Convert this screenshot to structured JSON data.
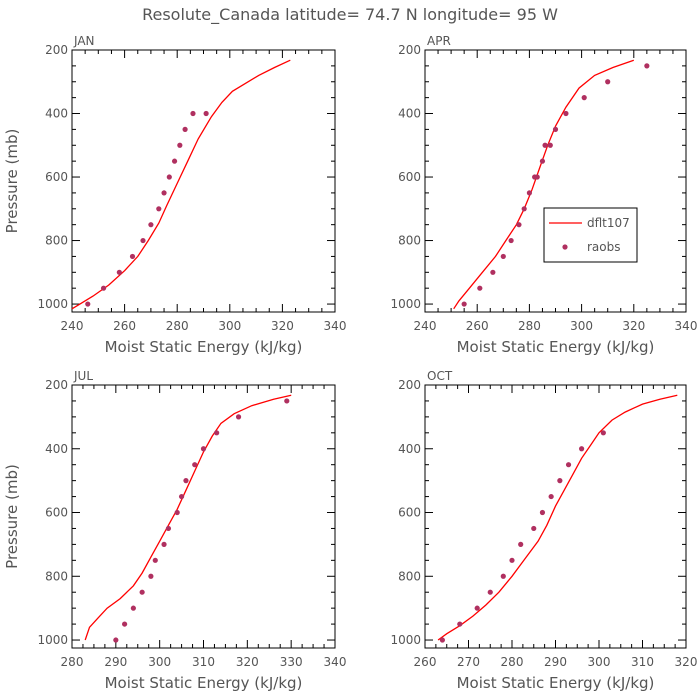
{
  "figure": {
    "title": "Resolute_Canada  latitude= 74.7 N longitude= 95 W"
  },
  "colors": {
    "model": "#ff0000",
    "obs": "#b03060",
    "axis": "#000000",
    "text": "#555555"
  },
  "chart_data": [
    {
      "type": "line",
      "panel_label": "JAN",
      "xlabel": "Moist Static Energy (kJ/kg)",
      "ylabel": "Pressure (mb)",
      "xlim": [
        240,
        340
      ],
      "ylim": [
        1025,
        200
      ],
      "xticks": [
        240,
        260,
        280,
        300,
        320,
        340
      ],
      "yticks": [
        200,
        400,
        600,
        800,
        1000
      ],
      "series": [
        {
          "name": "dflt107",
          "style": "line",
          "x": [
            240,
            243,
            248,
            254,
            260,
            265,
            269,
            273,
            276,
            280,
            284,
            288,
            293,
            297,
            301,
            306,
            311,
            317,
            323
          ],
          "y": [
            1015,
            1000,
            975,
            940,
            895,
            850,
            800,
            745,
            690,
            620,
            550,
            480,
            410,
            365,
            330,
            305,
            280,
            255,
            232
          ]
        },
        {
          "name": "raobs",
          "style": "marker",
          "x": [
            246,
            252,
            258,
            263,
            267,
            270,
            273,
            275,
            277,
            279,
            281,
            283,
            286,
            291
          ],
          "y": [
            1000,
            950,
            900,
            850,
            800,
            750,
            700,
            650,
            600,
            550,
            500,
            450,
            400,
            400
          ]
        }
      ]
    },
    {
      "type": "line",
      "panel_label": "APR",
      "xlabel": "Moist Static Energy (kJ/kg)",
      "ylabel": "",
      "xlim": [
        240,
        340
      ],
      "ylim": [
        1025,
        200
      ],
      "xticks": [
        240,
        260,
        280,
        300,
        320,
        340
      ],
      "yticks": [
        200,
        400,
        600,
        800,
        1000
      ],
      "legend": {
        "position": "center-right",
        "entries": [
          "dflt107",
          "raobs"
        ]
      },
      "series": [
        {
          "name": "dflt107",
          "style": "line",
          "x": [
            251,
            253,
            257,
            262,
            267,
            271,
            275,
            278,
            281,
            284,
            287,
            290,
            294,
            299,
            305,
            312,
            320
          ],
          "y": [
            1015,
            990,
            950,
            900,
            850,
            800,
            750,
            700,
            640,
            570,
            500,
            440,
            380,
            320,
            280,
            255,
            232
          ]
        },
        {
          "name": "raobs",
          "style": "marker",
          "x": [
            255,
            261,
            266,
            270,
            273,
            276,
            278,
            280,
            282,
            283,
            285,
            286,
            288,
            290,
            294,
            301,
            310,
            325
          ],
          "y": [
            1000,
            950,
            900,
            850,
            800,
            750,
            700,
            650,
            600,
            600,
            550,
            500,
            500,
            450,
            400,
            350,
            300,
            250
          ]
        }
      ]
    },
    {
      "type": "line",
      "panel_label": "JUL",
      "xlabel": "Moist Static Energy (kJ/kg)",
      "ylabel": "Pressure (mb)",
      "xlim": [
        280,
        340
      ],
      "ylim": [
        1025,
        200
      ],
      "xticks": [
        280,
        290,
        300,
        310,
        320,
        330,
        340
      ],
      "yticks": [
        200,
        400,
        600,
        800,
        1000
      ],
      "series": [
        {
          "name": "dflt107",
          "style": "line",
          "x": [
            283,
            284,
            286,
            288,
            291,
            294,
            296,
            298,
            300,
            302,
            304,
            306,
            308,
            310,
            312,
            314,
            317,
            321,
            326,
            330
          ],
          "y": [
            1000,
            960,
            930,
            900,
            870,
            830,
            790,
            740,
            690,
            640,
            590,
            530,
            470,
            410,
            360,
            320,
            290,
            265,
            245,
            232
          ]
        },
        {
          "name": "raobs",
          "style": "marker",
          "x": [
            290,
            292,
            294,
            296,
            298,
            299,
            301,
            302,
            304,
            305,
            306,
            308,
            310,
            313,
            318,
            329
          ],
          "y": [
            1000,
            950,
            900,
            850,
            800,
            750,
            700,
            650,
            600,
            550,
            500,
            450,
            400,
            350,
            300,
            250
          ]
        }
      ]
    },
    {
      "type": "line",
      "panel_label": "OCT",
      "xlabel": "Moist Static Energy (kJ/kg)",
      "ylabel": "",
      "xlim": [
        260,
        320
      ],
      "ylim": [
        1025,
        200
      ],
      "xticks": [
        260,
        270,
        280,
        290,
        300,
        310,
        320
      ],
      "yticks": [
        200,
        400,
        600,
        800,
        1000
      ],
      "series": [
        {
          "name": "dflt107",
          "style": "line",
          "x": [
            263,
            265,
            268,
            271,
            274,
            277,
            280,
            283,
            286,
            288,
            290,
            292,
            294,
            296,
            298,
            300,
            303,
            306,
            310,
            314,
            318
          ],
          "y": [
            1000,
            980,
            955,
            925,
            890,
            850,
            800,
            745,
            690,
            640,
            580,
            530,
            480,
            430,
            390,
            350,
            310,
            285,
            260,
            245,
            232
          ]
        },
        {
          "name": "raobs",
          "style": "marker",
          "x": [
            264,
            268,
            272,
            275,
            278,
            280,
            282,
            285,
            287,
            289,
            291,
            293,
            296,
            301
          ],
          "y": [
            1000,
            950,
            900,
            850,
            800,
            750,
            700,
            650,
            600,
            550,
            500,
            450,
            400,
            350
          ]
        }
      ]
    }
  ]
}
